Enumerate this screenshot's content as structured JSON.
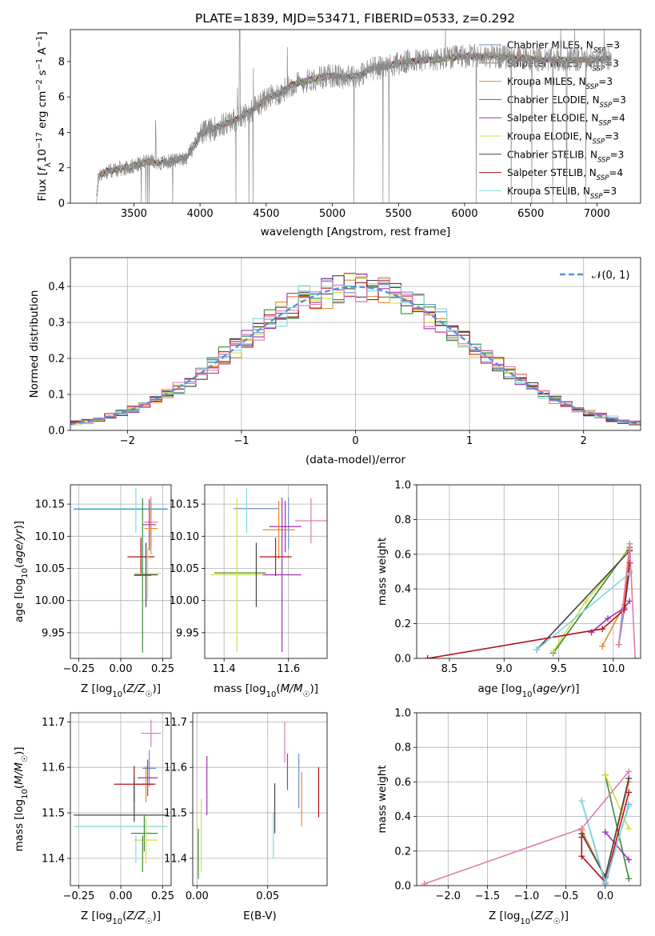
{
  "figure": {
    "title": "PLATE=1839, MJD=53471, FIBERID=0533, z=0.292"
  },
  "chart_data": [
    {
      "id": "spectrum",
      "type": "line",
      "title": "PLATE=1839, MJD=53471, FIBERID=0533, z=0.292",
      "xlabel": "wavelength [Angstrom, rest frame]",
      "ylabel": "Flux [f_λ 10^-17 erg cm^-2 s^-1 A^-1]",
      "xlim": [
        3020,
        7330
      ],
      "ylim": [
        0,
        9.8
      ],
      "xticks": [
        3500,
        4000,
        4500,
        5000,
        5500,
        6000,
        6500,
        7000
      ],
      "yticks": [
        0,
        2,
        4,
        6,
        8
      ],
      "grid": false,
      "legend_position": "top-right",
      "spectrum_knots": {
        "x": [
          3215,
          3235,
          3300,
          3400,
          3500,
          3600,
          3700,
          3800,
          3900,
          3950,
          4000,
          4100,
          4200,
          4300,
          4400,
          4500,
          4600,
          4700,
          4800,
          4900,
          5000,
          5100,
          5200,
          5300,
          5400,
          5500,
          5600,
          5700,
          5800,
          5900,
          6000,
          6200,
          6400,
          6600,
          6800,
          7000,
          7110
        ],
        "y": [
          0,
          1.6,
          1.8,
          1.95,
          2.1,
          2.35,
          2.25,
          2.4,
          2.6,
          3.2,
          3.9,
          4.2,
          4.5,
          4.8,
          5.3,
          5.9,
          6.2,
          6.7,
          6.9,
          7.1,
          7.2,
          7.1,
          7.2,
          7.6,
          7.7,
          7.9,
          8.0,
          8.1,
          8.1,
          8.2,
          8.3,
          8.3,
          8.2,
          8.1,
          8.1,
          8.1,
          8.2
        ]
      },
      "series": [
        {
          "name": "Chabrier MILES, N_SSP=3",
          "color": "#6a8fd0"
        },
        {
          "name": "Salpeter MILES, N_SSP=3",
          "color": "#8c8c8c"
        },
        {
          "name": "Kroupa MILES, N_SSP=3",
          "color": "#e8892e"
        },
        {
          "name": "Chabrier ELODIE, N_SSP=3",
          "color": "#3a8a3a"
        },
        {
          "name": "Salpeter ELODIE, N_SSP=4",
          "color": "#9b33b0"
        },
        {
          "name": "Kroupa ELODIE, N_SSP=3",
          "color": "#d4de3c"
        },
        {
          "name": "Chabrier STELIB, N_SSP=3",
          "color": "#444444"
        },
        {
          "name": "Salpeter STELIB, N_SSP=4",
          "color": "#b31217"
        },
        {
          "name": "Kroupa STELIB, N_SSP=3",
          "color": "#7fd8e0"
        }
      ]
    },
    {
      "id": "residuals",
      "type": "line",
      "xlabel": "(data-model)/error",
      "ylabel": "Normed distribution",
      "xlim": [
        -2.5,
        2.5
      ],
      "ylim": [
        0,
        0.48
      ],
      "xticks": [
        -2,
        -1,
        0,
        1,
        2
      ],
      "yticks": [
        0.0,
        0.1,
        0.2,
        0.3,
        0.4
      ],
      "grid": true,
      "legend_position": "top-right",
      "bin_width": 0.1,
      "reference_curve": {
        "name": "𝒩(0, 1)",
        "color": "#5b8fd8",
        "style": "dashed"
      },
      "series_colors": [
        "#6a8fd0",
        "#e8892e",
        "#3a8a3a",
        "#9b33b0",
        "#d4de3c",
        "#444444",
        "#b31217",
        "#7fd8e0",
        "#e07ab0"
      ]
    },
    {
      "id": "age-vs-Z",
      "type": "scatter",
      "xlabel": "Z [log10(Z/Z☉)]",
      "ylabel": "age  [log10(age/yr)]",
      "xlim": [
        -0.3,
        0.3
      ],
      "ylim": [
        9.91,
        10.18
      ],
      "xticks": [
        -0.25,
        0.0,
        0.25
      ],
      "yticks": [
        9.95,
        10.0,
        10.05,
        10.1,
        10.15
      ],
      "grid": true,
      "points": [
        {
          "x": 0.0,
          "xerr": 0.28,
          "y": 10.143,
          "yerr": 0.0,
          "color": "#7fd8e0"
        },
        {
          "x": 0.0,
          "xerr": 0.28,
          "y": 10.142,
          "yerr": 0.0,
          "color": "#6a8fd0"
        },
        {
          "x": 0.09,
          "xerr": 0.0,
          "y": 10.14,
          "yerr": 0.035,
          "color": "#7fd8e0"
        },
        {
          "x": 0.18,
          "xerr": 0.04,
          "y": 10.122,
          "yerr": 0.04,
          "color": "#e07ab0"
        },
        {
          "x": 0.17,
          "xerr": 0.04,
          "y": 10.118,
          "yerr": 0.04,
          "color": "#9b33b0"
        },
        {
          "x": 0.18,
          "xerr": 0.04,
          "y": 10.112,
          "yerr": 0.04,
          "color": "#e8892e"
        },
        {
          "x": 0.12,
          "xerr": 0.08,
          "y": 10.068,
          "yerr": 0.03,
          "color": "#b31217"
        },
        {
          "x": 0.16,
          "xerr": 0.08,
          "y": 10.042,
          "yerr": 0.04,
          "color": "#d4de3c"
        },
        {
          "x": 0.15,
          "xerr": 0.07,
          "y": 10.04,
          "yerr": 0.05,
          "color": "#444444"
        },
        {
          "x": 0.13,
          "xerr": 0.05,
          "y": 10.039,
          "yerr": 0.12,
          "color": "#3a8a3a"
        }
      ]
    },
    {
      "id": "age-vs-mass",
      "type": "scatter",
      "xlabel": "mass [log10(M/M☉)]",
      "ylabel": "",
      "xlim": [
        11.34,
        11.72
      ],
      "ylim": [
        9.91,
        10.18
      ],
      "xticks": [
        11.4,
        11.6
      ],
      "yticks": [
        9.95,
        10.0,
        10.05,
        10.1,
        10.15
      ],
      "grid": true,
      "points": [
        {
          "x": 11.5,
          "xerr": 0.07,
          "y": 10.143,
          "yerr": 0.0,
          "color": "#6a8fd0"
        },
        {
          "x": 11.47,
          "xerr": 0.0,
          "y": 10.14,
          "yerr": 0.035,
          "color": "#7fd8e0"
        },
        {
          "x": 11.67,
          "xerr": 0.05,
          "y": 10.124,
          "yerr": 0.035,
          "color": "#e07ab0"
        },
        {
          "x": 11.6,
          "xerr": 0.0,
          "y": 10.12,
          "yerr": 0.04,
          "color": "#6a8fd0"
        },
        {
          "x": 11.59,
          "xerr": 0.05,
          "y": 10.115,
          "yerr": 0.04,
          "color": "#9b33b0"
        },
        {
          "x": 11.57,
          "xerr": 0.05,
          "y": 10.11,
          "yerr": 0.045,
          "color": "#e8892e"
        },
        {
          "x": 11.56,
          "xerr": 0.05,
          "y": 10.068,
          "yerr": 0.03,
          "color": "#b31217"
        },
        {
          "x": 11.45,
          "xerr": 0.08,
          "y": 10.043,
          "yerr": 0.0,
          "color": "#3a8a3a"
        },
        {
          "x": 11.44,
          "xerr": 0.08,
          "y": 10.04,
          "yerr": 0.12,
          "color": "#d4de3c"
        },
        {
          "x": 11.5,
          "xerr": 0.0,
          "y": 10.04,
          "yerr": 0.05,
          "color": "#444444"
        },
        {
          "x": 11.58,
          "xerr": 0.06,
          "y": 10.04,
          "yerr": 0.12,
          "color": "#9b33b0"
        }
      ]
    },
    {
      "id": "weight-vs-age",
      "type": "line",
      "xlabel": "age  [log10(age/yr)]",
      "ylabel": "mass weight",
      "xlim": [
        8.2,
        10.25
      ],
      "ylim": [
        0,
        1
      ],
      "xticks": [
        8.5,
        9.0,
        9.5,
        10.0
      ],
      "yticks": [
        0.0,
        0.2,
        0.4,
        0.6,
        0.8,
        1.0
      ],
      "grid": true,
      "series": [
        {
          "color": "#6a8fd0",
          "points": [
            [
              10.05,
              0.08
            ],
            [
              10.1,
              0.28
            ],
            [
              10.15,
              0.5
            ]
          ]
        },
        {
          "color": "#e8892e",
          "points": [
            [
              9.9,
              0.07
            ],
            [
              10.1,
              0.31
            ],
            [
              10.15,
              0.62
            ]
          ]
        },
        {
          "color": "#3a8a3a",
          "points": [
            [
              9.45,
              0.03
            ],
            [
              10.15,
              0.64
            ]
          ]
        },
        {
          "color": "#9b33b0",
          "points": [
            [
              9.8,
              0.15
            ],
            [
              9.95,
              0.23
            ],
            [
              10.1,
              0.29
            ],
            [
              10.15,
              0.33
            ]
          ]
        },
        {
          "color": "#d4de3c",
          "points": [
            [
              9.45,
              0.04
            ],
            [
              9.75,
              0.33
            ],
            [
              10.15,
              0.63
            ]
          ]
        },
        {
          "color": "#444444",
          "points": [
            [
              9.3,
              0.05
            ],
            [
              10.15,
              0.62
            ]
          ]
        },
        {
          "color": "#b31217",
          "points": [
            [
              8.3,
              0.0
            ],
            [
              9.9,
              0.17
            ],
            [
              10.1,
              0.28
            ],
            [
              10.15,
              0.55
            ]
          ]
        },
        {
          "color": "#7fd8e0",
          "points": [
            [
              9.3,
              0.05
            ],
            [
              10.15,
              0.49
            ]
          ]
        },
        {
          "color": "#e07ab0",
          "points": [
            [
              10.05,
              0.08
            ],
            [
              10.15,
              0.66
            ],
            [
              10.2,
              0.0
            ]
          ]
        }
      ]
    },
    {
      "id": "mass-vs-Z",
      "type": "scatter",
      "xlabel": "Z [log10(Z/Z☉)]",
      "ylabel": "mass [log10(M/M☉)]",
      "xlim": [
        -0.3,
        0.3
      ],
      "ylim": [
        11.34,
        11.72
      ],
      "xticks": [
        -0.25,
        0.0,
        0.25
      ],
      "yticks": [
        11.4,
        11.5,
        11.6,
        11.7
      ],
      "grid": true,
      "points": [
        {
          "x": 0.18,
          "xerr": 0.06,
          "y": 11.675,
          "yerr": 0.03,
          "color": "#e07ab0"
        },
        {
          "x": 0.17,
          "xerr": 0.04,
          "y": 11.598,
          "yerr": 0.04,
          "color": "#6a8fd0"
        },
        {
          "x": 0.16,
          "xerr": 0.06,
          "y": 11.577,
          "yerr": 0.04,
          "color": "#9b33b0"
        },
        {
          "x": 0.15,
          "xerr": 0.06,
          "y": 11.563,
          "yerr": 0.04,
          "color": "#e8892e"
        },
        {
          "x": 0.08,
          "xerr": 0.12,
          "y": 11.563,
          "yerr": 0.04,
          "color": "#b31217"
        },
        {
          "x": 0.08,
          "xerr": 0.0,
          "y": 11.53,
          "yerr": 0.05,
          "color": "#444444"
        },
        {
          "x": 0.0,
          "xerr": 0.28,
          "y": 11.495,
          "yerr": 0.0,
          "color": "#444444"
        },
        {
          "x": 0.0,
          "xerr": 0.28,
          "y": 11.47,
          "yerr": 0.0,
          "color": "#7fd8e0"
        },
        {
          "x": 0.14,
          "xerr": 0.08,
          "y": 11.455,
          "yerr": 0.04,
          "color": "#3a8a3a"
        },
        {
          "x": 0.15,
          "xerr": 0.07,
          "y": 11.44,
          "yerr": 0.05,
          "color": "#d4de3c"
        },
        {
          "x": 0.13,
          "xerr": 0.0,
          "y": 11.41,
          "yerr": 0.04,
          "color": "#3a8a3a"
        },
        {
          "x": 0.09,
          "xerr": 0.0,
          "y": 11.42,
          "yerr": 0.03,
          "color": "#7fd8e0"
        }
      ]
    },
    {
      "id": "mass-vs-ebv",
      "type": "scatter",
      "xlabel": "E(B-V)",
      "ylabel": "",
      "xlim": [
        -0.003,
        0.092
      ],
      "ylim": [
        11.34,
        11.72
      ],
      "xticks": [
        0.0,
        0.05
      ],
      "yticks": [
        11.4,
        11.5,
        11.6,
        11.7
      ],
      "grid": true,
      "points": [
        {
          "x": 0.001,
          "xerr": 0.0,
          "y": 11.41,
          "yerr": 0.055,
          "color": "#3a8a3a"
        },
        {
          "x": 0.003,
          "xerr": 0.0,
          "y": 11.45,
          "yerr": 0.08,
          "color": "#d4de3c"
        },
        {
          "x": 0.007,
          "xerr": 0.0,
          "y": 11.56,
          "yerr": 0.065,
          "color": "#9b33b0"
        },
        {
          "x": 0.055,
          "xerr": 0.0,
          "y": 11.51,
          "yerr": 0.055,
          "color": "#444444"
        },
        {
          "x": 0.054,
          "xerr": 0.0,
          "y": 11.45,
          "yerr": 0.05,
          "color": "#7fd8e0"
        },
        {
          "x": 0.062,
          "xerr": 0.0,
          "y": 11.655,
          "yerr": 0.045,
          "color": "#e07ab0"
        },
        {
          "x": 0.064,
          "xerr": 0.0,
          "y": 11.59,
          "yerr": 0.04,
          "color": "#9b33b0"
        },
        {
          "x": 0.072,
          "xerr": 0.0,
          "y": 11.57,
          "yerr": 0.06,
          "color": "#6a8fd0"
        },
        {
          "x": 0.074,
          "xerr": 0.0,
          "y": 11.53,
          "yerr": 0.06,
          "color": "#e8892e"
        },
        {
          "x": 0.086,
          "xerr": 0.0,
          "y": 11.545,
          "yerr": 0.055,
          "color": "#b31217"
        }
      ]
    },
    {
      "id": "weight-vs-Z",
      "type": "line",
      "xlabel": "Z [log10(Z/Z☉)]",
      "ylabel": "mass weight",
      "xlim": [
        -2.4,
        0.45
      ],
      "ylim": [
        0,
        1
      ],
      "xticks": [
        -2.0,
        -1.5,
        -1.0,
        -0.5,
        0.0
      ],
      "xtick_labels": [
        "−2.0",
        "−1.5",
        "−1.0",
        "−0.5",
        "0.0"
      ],
      "yticks": [
        0.0,
        0.2,
        0.4,
        0.6,
        0.8,
        1.0
      ],
      "grid": true,
      "series": [
        {
          "color": "#6a8fd0",
          "points": [
            [
              -0.3,
              0.49
            ],
            [
              0.0,
              0.01
            ],
            [
              0.3,
              0.47
            ]
          ]
        },
        {
          "color": "#e8892e",
          "points": [
            [
              -0.3,
              0.32
            ],
            [
              0.0,
              0.05
            ],
            [
              0.3,
              0.6
            ]
          ]
        },
        {
          "color": "#3a8a3a",
          "points": [
            [
              0.0,
              0.64
            ],
            [
              0.3,
              0.04
            ]
          ]
        },
        {
          "color": "#9b33b0",
          "points": [
            [
              0.0,
              0.31
            ],
            [
              0.3,
              0.15
            ]
          ]
        },
        {
          "color": "#d4de3c",
          "points": [
            [
              0.0,
              0.64
            ],
            [
              0.3,
              0.33
            ]
          ]
        },
        {
          "color": "#444444",
          "points": [
            [
              -0.3,
              0.3
            ],
            [
              0.0,
              0.05
            ],
            [
              0.3,
              0.62
            ]
          ]
        },
        {
          "color": "#b31217",
          "points": [
            [
              -0.3,
              0.28
            ],
            [
              -0.3,
              0.17
            ],
            [
              0.0,
              0.02
            ],
            [
              0.3,
              0.54
            ]
          ]
        },
        {
          "color": "#7fd8e0",
          "points": [
            [
              -0.3,
              0.49
            ],
            [
              0.0,
              0.02
            ],
            [
              0.3,
              0.46
            ]
          ]
        },
        {
          "color": "#e07ab0",
          "points": [
            [
              -2.3,
              0.01
            ],
            [
              -0.3,
              0.33
            ],
            [
              0.3,
              0.66
            ]
          ]
        }
      ]
    }
  ]
}
